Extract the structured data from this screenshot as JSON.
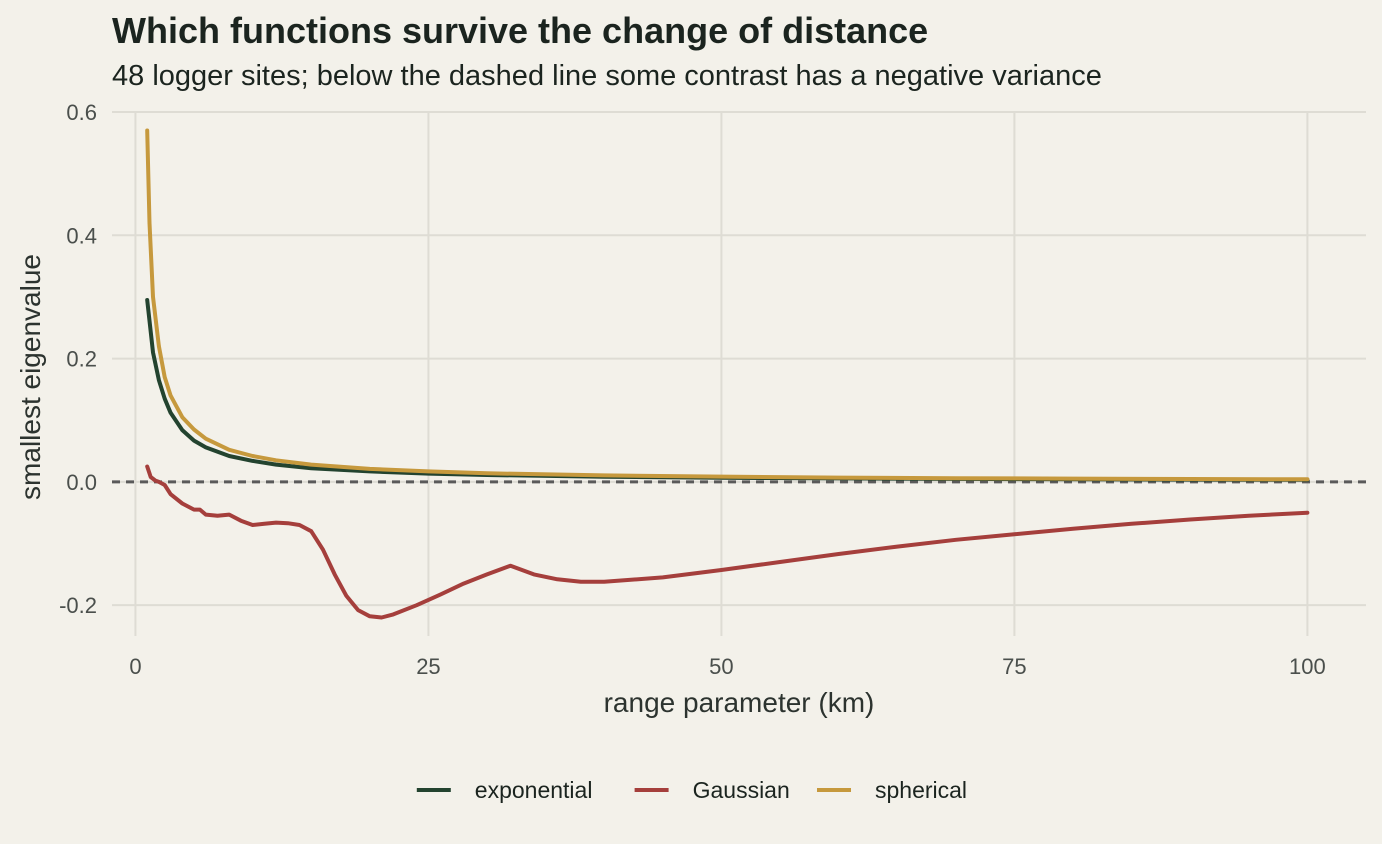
{
  "chart_data": {
    "type": "line",
    "title": "Which functions survive the change of distance",
    "subtitle": "48 logger sites; below the dashed line some contrast has a negative variance",
    "xlabel": "range parameter (km)",
    "ylabel": "smallest eigenvalue",
    "xlim": [
      -2,
      105
    ],
    "ylim": [
      -0.25,
      0.6
    ],
    "x_ticks": [
      0,
      25,
      50,
      75,
      100
    ],
    "x_tick_labels": [
      "0",
      "25",
      "50",
      "75",
      "100"
    ],
    "y_ticks": [
      -0.2,
      0.0,
      0.2,
      0.4,
      0.6
    ],
    "y_tick_labels": [
      "-0.2",
      "0.0",
      "0.2",
      "0.4",
      "0.6"
    ],
    "grid": true,
    "reference_line": {
      "y": 0.0,
      "style": "dashed",
      "color": "#5a5a5a"
    },
    "legend_position": "bottom",
    "series": [
      {
        "name": "exponential",
        "color": "#23432f",
        "x": [
          1,
          1.5,
          2,
          2.5,
          3,
          4,
          5,
          6,
          8,
          10,
          12,
          15,
          20,
          25,
          30,
          40,
          50,
          60,
          70,
          80,
          90,
          100
        ],
        "y": [
          0.295,
          0.21,
          0.165,
          0.135,
          0.112,
          0.084,
          0.067,
          0.056,
          0.042,
          0.034,
          0.028,
          0.022,
          0.017,
          0.0135,
          0.0112,
          0.0084,
          0.0067,
          0.0056,
          0.0048,
          0.0042,
          0.0037,
          0.0034
        ]
      },
      {
        "name": "Gaussian",
        "color": "#a53f3c",
        "x": [
          1,
          1.3,
          1.7,
          2,
          2.5,
          3,
          4,
          5,
          5.5,
          6,
          7,
          8,
          9,
          10,
          11,
          12,
          13,
          14,
          15,
          16,
          17,
          18,
          19,
          20,
          21,
          22,
          24,
          26,
          28,
          30,
          32,
          34,
          36,
          38,
          40,
          45,
          50,
          55,
          60,
          65,
          70,
          75,
          80,
          85,
          90,
          95,
          100
        ],
        "y": [
          0.025,
          0.008,
          0.002,
          0.0,
          -0.005,
          -0.02,
          -0.035,
          -0.045,
          -0.045,
          -0.053,
          -0.055,
          -0.053,
          -0.063,
          -0.07,
          -0.068,
          -0.066,
          -0.067,
          -0.07,
          -0.08,
          -0.11,
          -0.15,
          -0.185,
          -0.208,
          -0.218,
          -0.22,
          -0.215,
          -0.2,
          -0.183,
          -0.165,
          -0.15,
          -0.136,
          -0.15,
          -0.158,
          -0.162,
          -0.162,
          -0.155,
          -0.143,
          -0.13,
          -0.117,
          -0.105,
          -0.094,
          -0.085,
          -0.076,
          -0.068,
          -0.061,
          -0.055,
          -0.05
        ]
      },
      {
        "name": "spherical",
        "color": "#c6993d",
        "x": [
          1,
          1.2,
          1.5,
          2,
          2.5,
          3,
          4,
          5,
          6,
          8,
          10,
          12,
          15,
          20,
          25,
          30,
          40,
          50,
          60,
          70,
          80,
          90,
          100
        ],
        "y": [
          0.57,
          0.42,
          0.3,
          0.22,
          0.17,
          0.14,
          0.105,
          0.085,
          0.07,
          0.052,
          0.042,
          0.035,
          0.028,
          0.021,
          0.017,
          0.014,
          0.0105,
          0.0085,
          0.007,
          0.006,
          0.0053,
          0.0047,
          0.0042
        ]
      }
    ]
  }
}
